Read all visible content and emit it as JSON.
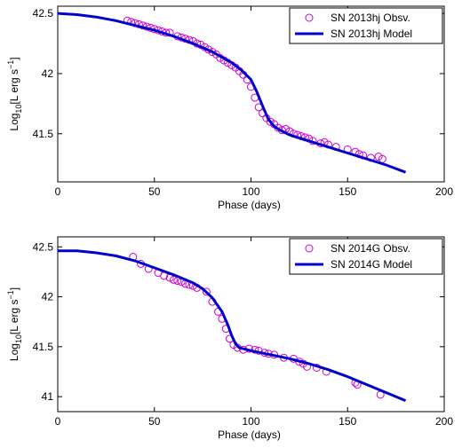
{
  "chart_data": [
    {
      "type": "line+scatter",
      "xlabel": "Phase (days)",
      "ylabel_main": "Log",
      "ylabel_sub": "10",
      "ylabel_rest": "[L erg s",
      "ylabel_sup": "−1",
      "ylabel_end": "]",
      "xlim": [
        0,
        200
      ],
      "ylim": [
        41.1,
        42.56
      ],
      "xticks": [
        0,
        50,
        100,
        150,
        200
      ],
      "yticks": [
        41.5,
        42,
        42.5
      ],
      "legend_position": "top-right",
      "series": [
        {
          "name": "SN 2013hj Obsv.",
          "kind": "scatter",
          "color": "#d000d0",
          "x": [
            36,
            38,
            40,
            42,
            44,
            46,
            48,
            50,
            52,
            54,
            56,
            58,
            62,
            64,
            66,
            68,
            70,
            72,
            74,
            76,
            78,
            80,
            82,
            84,
            86,
            88,
            90,
            92,
            94,
            96,
            98,
            100,
            102,
            104,
            106,
            108,
            110,
            112,
            114,
            116,
            118,
            120,
            122,
            124,
            126,
            128,
            130,
            132,
            136,
            138,
            140,
            144,
            150,
            154,
            156,
            158,
            162,
            166,
            168
          ],
          "y": [
            42.44,
            42.43,
            42.42,
            42.41,
            42.4,
            42.39,
            42.38,
            42.37,
            42.36,
            42.35,
            42.34,
            42.34,
            42.31,
            42.3,
            42.29,
            42.28,
            42.27,
            42.25,
            42.24,
            42.22,
            42.2,
            42.18,
            42.16,
            42.13,
            42.11,
            42.09,
            42.07,
            42.05,
            42.02,
            41.99,
            41.95,
            41.89,
            41.8,
            41.72,
            41.67,
            41.63,
            41.6,
            41.58,
            41.55,
            41.53,
            41.54,
            41.52,
            41.5,
            41.49,
            41.48,
            41.47,
            41.46,
            41.44,
            41.42,
            41.43,
            41.41,
            41.39,
            41.37,
            41.35,
            41.33,
            41.32,
            41.3,
            41.31,
            41.29
          ]
        },
        {
          "name": "SN 2013hj Model",
          "kind": "line",
          "color": "#0000cc",
          "x": [
            0,
            10,
            20,
            30,
            40,
            50,
            60,
            70,
            80,
            90,
            95,
            100,
            103,
            106,
            109,
            112,
            115,
            120,
            130,
            140,
            150,
            160,
            170,
            180
          ],
          "y": [
            42.5,
            42.49,
            42.47,
            42.44,
            42.4,
            42.36,
            42.31,
            42.25,
            42.18,
            42.09,
            42.03,
            41.95,
            41.85,
            41.73,
            41.62,
            41.56,
            41.53,
            41.49,
            41.44,
            41.39,
            41.34,
            41.29,
            41.24,
            41.18
          ]
        }
      ]
    },
    {
      "type": "line+scatter",
      "xlabel": "Phase (days)",
      "ylabel_main": "Log",
      "ylabel_sub": "10",
      "ylabel_rest": "[L erg s",
      "ylabel_sup": "−1",
      "ylabel_end": "]",
      "xlim": [
        0,
        200
      ],
      "ylim": [
        40.85,
        42.6
      ],
      "xticks": [
        0,
        50,
        100,
        150,
        200
      ],
      "yticks": [
        41,
        41.5,
        42,
        42.5
      ],
      "legend_position": "top-right",
      "series": [
        {
          "name": "SN 2014G Obsv.",
          "kind": "scatter",
          "color": "#d000d0",
          "x": [
            39,
            43,
            47,
            52,
            55,
            58,
            60,
            62,
            64,
            66,
            68,
            70,
            72,
            77,
            80,
            83,
            85,
            87,
            89,
            91,
            93,
            96,
            99,
            102,
            104,
            107,
            109,
            112,
            117,
            122,
            125,
            127,
            129,
            134,
            139,
            154,
            155,
            167
          ],
          "y": [
            42.4,
            42.33,
            42.28,
            42.24,
            42.21,
            42.19,
            42.17,
            42.16,
            42.15,
            42.13,
            42.12,
            42.11,
            42.09,
            42.05,
            41.95,
            41.85,
            41.78,
            41.68,
            41.58,
            41.52,
            41.49,
            41.47,
            41.48,
            41.47,
            41.46,
            41.44,
            41.43,
            41.42,
            41.39,
            41.38,
            41.35,
            41.33,
            41.3,
            41.29,
            41.25,
            41.14,
            41.12,
            41.02
          ]
        },
        {
          "name": "SN 2014G Model",
          "kind": "line",
          "color": "#0000cc",
          "x": [
            0,
            10,
            20,
            30,
            40,
            50,
            60,
            70,
            75,
            80,
            85,
            88,
            90,
            92,
            94,
            96,
            100,
            110,
            120,
            130,
            140,
            150,
            160,
            170,
            180
          ],
          "y": [
            42.46,
            42.46,
            42.44,
            42.41,
            42.36,
            42.29,
            42.22,
            42.14,
            42.08,
            41.99,
            41.85,
            41.72,
            41.61,
            41.53,
            41.49,
            41.48,
            41.46,
            41.42,
            41.38,
            41.33,
            41.27,
            41.2,
            41.12,
            41.04,
            40.96
          ]
        }
      ]
    }
  ]
}
